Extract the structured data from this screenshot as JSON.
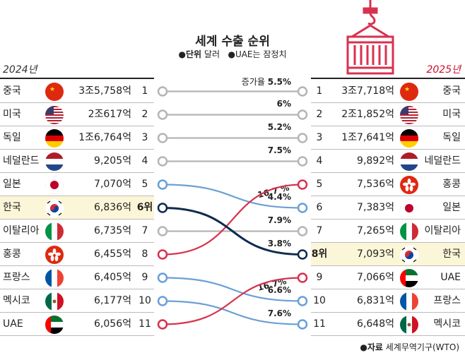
{
  "title": "세계 수출 순위",
  "unit_label": "단위",
  "unit_value": "달러",
  "note": "UAE는 잠정치",
  "year_left": "2024년",
  "year_right": "2025년",
  "source_label": "자료",
  "source_value": "세계무역기구(WTO)",
  "colors": {
    "gray": "#b5b5b5",
    "blue": "#6a9fd6",
    "red": "#d8314f",
    "navy": "#0d2b4e",
    "highlight": "#fcf6d8"
  },
  "chart_data": {
    "type": "table",
    "title": "세계 수출 순위",
    "unit": "달러",
    "rows_2024": [
      {
        "rank": "1",
        "country": "중국",
        "value": "3조5,758억",
        "flag": "china-flag-icon"
      },
      {
        "rank": "2",
        "country": "미국",
        "value": "2조617억",
        "flag": "usa-flag-icon"
      },
      {
        "rank": "3",
        "country": "독일",
        "value": "1조6,764억",
        "flag": "germany-flag-icon"
      },
      {
        "rank": "4",
        "country": "네덜란드",
        "value": "9,205억",
        "flag": "netherlands-flag-icon"
      },
      {
        "rank": "5",
        "country": "일본",
        "value": "7,070억",
        "flag": "japan-flag-icon"
      },
      {
        "rank": "6위",
        "country": "한국",
        "value": "6,836억",
        "flag": "korea-flag-icon",
        "highlight": true
      },
      {
        "rank": "7",
        "country": "이탈리아",
        "value": "6,735억",
        "flag": "italy-flag-icon"
      },
      {
        "rank": "8",
        "country": "홍콩",
        "value": "6,455억",
        "flag": "hongkong-flag-icon"
      },
      {
        "rank": "9",
        "country": "프랑스",
        "value": "6,405억",
        "flag": "france-flag-icon"
      },
      {
        "rank": "10",
        "country": "멕시코",
        "value": "6,177억",
        "flag": "mexico-flag-icon"
      },
      {
        "rank": "11",
        "country": "UAE",
        "value": "6,056억",
        "flag": "uae-flag-icon"
      }
    ],
    "rows_2025": [
      {
        "rank": "1",
        "country": "중국",
        "value": "3조7,718억",
        "flag": "china-flag-icon"
      },
      {
        "rank": "2",
        "country": "미국",
        "value": "2조1,852억",
        "flag": "usa-flag-icon"
      },
      {
        "rank": "3",
        "country": "독일",
        "value": "1조7,641억",
        "flag": "germany-flag-icon"
      },
      {
        "rank": "4",
        "country": "네덜란드",
        "value": "9,892억",
        "flag": "netherlands-flag-icon"
      },
      {
        "rank": "5",
        "country": "홍콩",
        "value": "7,536억",
        "flag": "hongkong-flag-icon"
      },
      {
        "rank": "6",
        "country": "일본",
        "value": "7,383억",
        "flag": "japan-flag-icon"
      },
      {
        "rank": "7",
        "country": "이탈리아",
        "value": "7,265억",
        "flag": "italy-flag-icon"
      },
      {
        "rank": "8위",
        "country": "한국",
        "value": "7,093억",
        "flag": "korea-flag-icon",
        "highlight": true
      },
      {
        "rank": "9",
        "country": "UAE",
        "value": "7,066억",
        "flag": "uae-flag-icon"
      },
      {
        "rank": "10",
        "country": "프랑스",
        "value": "6,831억",
        "flag": "france-flag-icon"
      },
      {
        "rank": "11",
        "country": "멕시코",
        "value": "6,648억",
        "flag": "mexico-flag-icon"
      }
    ],
    "growth_label": "증가율",
    "links": [
      {
        "country": "중국",
        "from_rank": 1,
        "to_rank": 1,
        "growth": "5.5%",
        "color": "gray"
      },
      {
        "country": "미국",
        "from_rank": 2,
        "to_rank": 2,
        "growth": "6%",
        "color": "gray"
      },
      {
        "country": "독일",
        "from_rank": 3,
        "to_rank": 3,
        "growth": "5.2%",
        "color": "gray"
      },
      {
        "country": "네덜란드",
        "from_rank": 4,
        "to_rank": 4,
        "growth": "7.5%",
        "color": "gray"
      },
      {
        "country": "홍콩",
        "from_rank": 8,
        "to_rank": 5,
        "growth": "16.7 %",
        "color": "red"
      },
      {
        "country": "일본",
        "from_rank": 5,
        "to_rank": 6,
        "growth": "4.4%",
        "color": "blue"
      },
      {
        "country": "이탈리아",
        "from_rank": 7,
        "to_rank": 7,
        "growth": "7.9%",
        "color": "gray"
      },
      {
        "country": "한국",
        "from_rank": 6,
        "to_rank": 8,
        "growth": "3.8%",
        "color": "navy"
      },
      {
        "country": "UAE",
        "from_rank": 11,
        "to_rank": 9,
        "growth": "16.7%",
        "color": "red"
      },
      {
        "country": "프랑스",
        "from_rank": 9,
        "to_rank": 10,
        "growth": "6.6%",
        "color": "blue"
      },
      {
        "country": "멕시코",
        "from_rank": 10,
        "to_rank": 11,
        "growth": "7.6%",
        "color": "blue"
      }
    ]
  }
}
